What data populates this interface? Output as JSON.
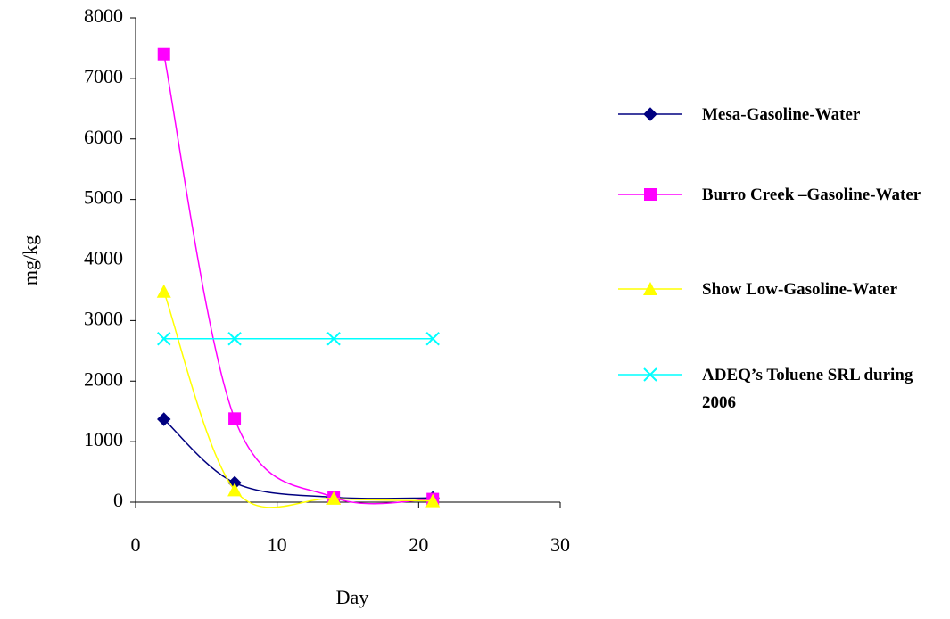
{
  "chart_data": {
    "type": "line",
    "xlabel": "Day",
    "ylabel": "mg/kg",
    "x": [
      2,
      7,
      14,
      21
    ],
    "xlim": [
      0,
      30
    ],
    "xticks": [
      0,
      10,
      20,
      30
    ],
    "ylim": [
      0,
      8000
    ],
    "yticks": [
      0,
      1000,
      2000,
      3000,
      4000,
      5000,
      6000,
      7000,
      8000
    ],
    "smooth": true,
    "series": [
      {
        "name": "Mesa-Gasoline-Water",
        "color": "#000080",
        "marker": "diamond",
        "values": [
          1370,
          320,
          80,
          70
        ]
      },
      {
        "name": "Burro Creek –Gasoline-Water",
        "color": "#ff00ff",
        "marker": "square",
        "values": [
          7400,
          1380,
          80,
          50
        ]
      },
      {
        "name": "Show Low-Gasoline-Water",
        "color": "#ffff00",
        "marker": "triangle",
        "values": [
          3480,
          200,
          60,
          20
        ]
      },
      {
        "name": "ADEQ’s Toluene SRL during 2006",
        "color": "#00ffff",
        "marker": "x",
        "values": [
          2700,
          2700,
          2700,
          2700
        ]
      }
    ]
  }
}
